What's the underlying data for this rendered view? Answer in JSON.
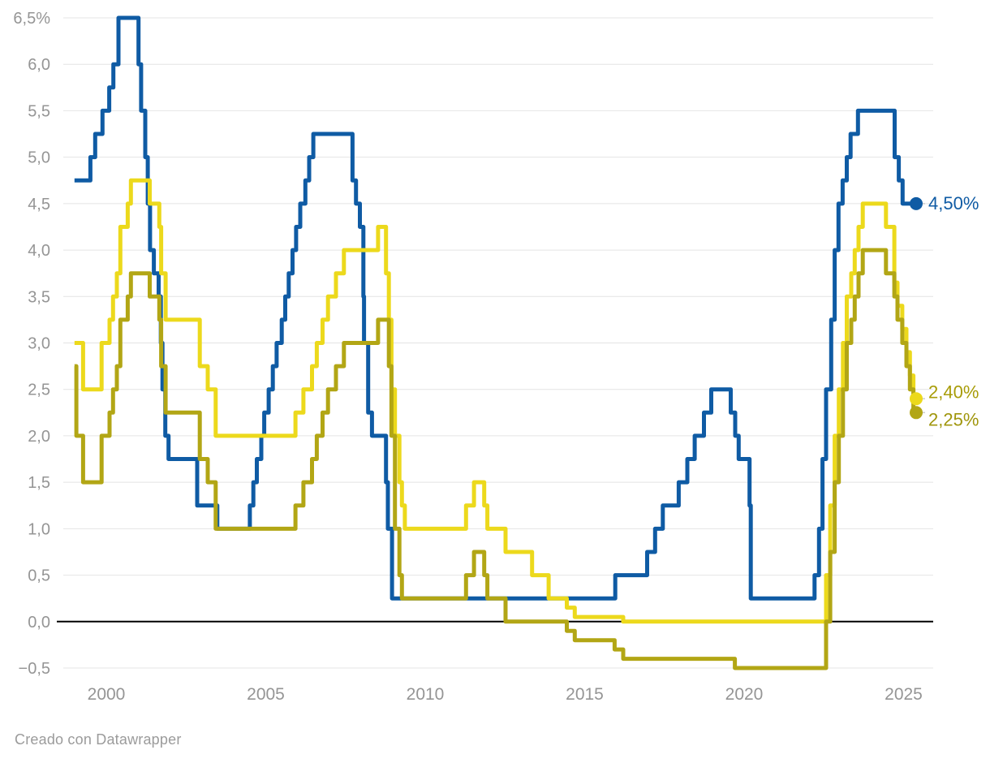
{
  "footer": {
    "credit": "Creado con Datawrapper"
  },
  "colors": {
    "grid": "#e4e4e4",
    "zero_line": "#000000",
    "axis_text": "#959595",
    "background": "#ffffff"
  },
  "chart_data": {
    "type": "line",
    "step": true,
    "title": "",
    "xlabel": "",
    "ylabel": "",
    "xlim": [
      1998.65,
      2025.93
    ],
    "ylim": [
      -0.5,
      6.5
    ],
    "x_end": 2025.38,
    "grid": true,
    "y_ticks": [
      {
        "v": 6.5,
        "label": "6,5%"
      },
      {
        "v": 6.0,
        "label": "6,0"
      },
      {
        "v": 5.5,
        "label": "5,5"
      },
      {
        "v": 5.0,
        "label": "5,0"
      },
      {
        "v": 4.5,
        "label": "4,5"
      },
      {
        "v": 4.0,
        "label": "4,0"
      },
      {
        "v": 3.5,
        "label": "3,5"
      },
      {
        "v": 3.0,
        "label": "3,0"
      },
      {
        "v": 2.5,
        "label": "2,5"
      },
      {
        "v": 2.0,
        "label": "2,0"
      },
      {
        "v": 1.5,
        "label": "1,5"
      },
      {
        "v": 1.0,
        "label": "1,0"
      },
      {
        "v": 0.5,
        "label": "0,5"
      },
      {
        "v": 0.0,
        "label": "0,0"
      },
      {
        "v": -0.5,
        "label": "−0,5"
      }
    ],
    "x_ticks": [
      {
        "v": 2000,
        "label": "2000"
      },
      {
        "v": 2005,
        "label": "2005"
      },
      {
        "v": 2010,
        "label": "2010"
      },
      {
        "v": 2015,
        "label": "2015"
      },
      {
        "v": 2020,
        "label": "2020"
      },
      {
        "v": 2025,
        "label": "2025"
      }
    ],
    "series": [
      {
        "end_label": "4,50%",
        "end_value": 4.5,
        "color": "#0f5ba4",
        "label_color": "#0f5ba4",
        "points": [
          [
            1999.0,
            4.75
          ],
          [
            1999.5,
            5.0
          ],
          [
            1999.65,
            5.25
          ],
          [
            1999.88,
            5.5
          ],
          [
            2000.09,
            5.75
          ],
          [
            2000.22,
            6.0
          ],
          [
            2000.38,
            6.5
          ],
          [
            2001.01,
            6.0
          ],
          [
            2001.09,
            5.5
          ],
          [
            2001.22,
            5.0
          ],
          [
            2001.3,
            4.5
          ],
          [
            2001.37,
            4.0
          ],
          [
            2001.49,
            3.75
          ],
          [
            2001.64,
            3.5
          ],
          [
            2001.71,
            3.0
          ],
          [
            2001.76,
            2.5
          ],
          [
            2001.85,
            2.0
          ],
          [
            2001.95,
            1.75
          ],
          [
            2002.85,
            1.25
          ],
          [
            2003.48,
            1.0
          ],
          [
            2004.5,
            1.25
          ],
          [
            2004.61,
            1.5
          ],
          [
            2004.72,
            1.75
          ],
          [
            2004.86,
            2.0
          ],
          [
            2004.95,
            2.25
          ],
          [
            2005.09,
            2.5
          ],
          [
            2005.22,
            2.75
          ],
          [
            2005.34,
            3.0
          ],
          [
            2005.5,
            3.25
          ],
          [
            2005.61,
            3.5
          ],
          [
            2005.72,
            3.75
          ],
          [
            2005.84,
            4.0
          ],
          [
            2005.95,
            4.25
          ],
          [
            2006.08,
            4.5
          ],
          [
            2006.24,
            4.75
          ],
          [
            2006.36,
            5.0
          ],
          [
            2006.49,
            5.25
          ],
          [
            2007.72,
            4.75
          ],
          [
            2007.83,
            4.5
          ],
          [
            2007.95,
            4.25
          ],
          [
            2008.06,
            3.5
          ],
          [
            2008.08,
            3.0
          ],
          [
            2008.21,
            2.25
          ],
          [
            2008.33,
            2.0
          ],
          [
            2008.77,
            1.5
          ],
          [
            2008.83,
            1.0
          ],
          [
            2008.96,
            0.25
          ],
          [
            2015.96,
            0.5
          ],
          [
            2016.96,
            0.75
          ],
          [
            2017.21,
            1.0
          ],
          [
            2017.45,
            1.25
          ],
          [
            2017.95,
            1.5
          ],
          [
            2018.22,
            1.75
          ],
          [
            2018.45,
            2.0
          ],
          [
            2018.74,
            2.25
          ],
          [
            2018.97,
            2.5
          ],
          [
            2019.58,
            2.25
          ],
          [
            2019.72,
            2.0
          ],
          [
            2019.83,
            1.75
          ],
          [
            2020.17,
            1.25
          ],
          [
            2020.21,
            0.25
          ],
          [
            2022.21,
            0.5
          ],
          [
            2022.35,
            1.0
          ],
          [
            2022.46,
            1.75
          ],
          [
            2022.57,
            2.5
          ],
          [
            2022.73,
            3.25
          ],
          [
            2022.84,
            4.0
          ],
          [
            2022.96,
            4.5
          ],
          [
            2023.09,
            4.75
          ],
          [
            2023.22,
            5.0
          ],
          [
            2023.34,
            5.25
          ],
          [
            2023.57,
            5.5
          ],
          [
            2024.72,
            5.0
          ],
          [
            2024.85,
            4.75
          ],
          [
            2024.97,
            4.5
          ]
        ]
      },
      {
        "end_label": "2,40%",
        "end_value": 2.4,
        "color": "#ecd91c",
        "label_color": "#a89c08",
        "points": [
          [
            1999.0,
            3.0
          ],
          [
            1999.27,
            2.5
          ],
          [
            1999.85,
            3.0
          ],
          [
            2000.1,
            3.25
          ],
          [
            2000.21,
            3.5
          ],
          [
            2000.33,
            3.75
          ],
          [
            2000.44,
            4.25
          ],
          [
            2000.67,
            4.5
          ],
          [
            2000.77,
            4.75
          ],
          [
            2001.36,
            4.5
          ],
          [
            2001.66,
            4.25
          ],
          [
            2001.72,
            3.75
          ],
          [
            2001.86,
            3.25
          ],
          [
            2002.93,
            2.75
          ],
          [
            2003.18,
            2.5
          ],
          [
            2003.43,
            2.0
          ],
          [
            2005.93,
            2.25
          ],
          [
            2006.18,
            2.5
          ],
          [
            2006.45,
            2.75
          ],
          [
            2006.6,
            3.0
          ],
          [
            2006.78,
            3.25
          ],
          [
            2006.95,
            3.5
          ],
          [
            2007.2,
            3.75
          ],
          [
            2007.45,
            4.0
          ],
          [
            2008.52,
            4.25
          ],
          [
            2008.77,
            3.75
          ],
          [
            2008.86,
            3.25
          ],
          [
            2008.94,
            2.5
          ],
          [
            2009.05,
            2.0
          ],
          [
            2009.19,
            1.5
          ],
          [
            2009.27,
            1.25
          ],
          [
            2009.36,
            1.0
          ],
          [
            2011.28,
            1.25
          ],
          [
            2011.53,
            1.5
          ],
          [
            2011.85,
            1.25
          ],
          [
            2011.95,
            1.0
          ],
          [
            2012.52,
            0.75
          ],
          [
            2013.35,
            0.5
          ],
          [
            2013.87,
            0.25
          ],
          [
            2014.44,
            0.15
          ],
          [
            2014.69,
            0.05
          ],
          [
            2016.21,
            0.0
          ],
          [
            2022.57,
            0.5
          ],
          [
            2022.7,
            1.25
          ],
          [
            2022.84,
            2.0
          ],
          [
            2022.97,
            2.5
          ],
          [
            2023.1,
            3.0
          ],
          [
            2023.22,
            3.5
          ],
          [
            2023.36,
            3.75
          ],
          [
            2023.47,
            4.0
          ],
          [
            2023.59,
            4.25
          ],
          [
            2023.72,
            4.5
          ],
          [
            2024.45,
            4.25
          ],
          [
            2024.71,
            3.65
          ],
          [
            2024.81,
            3.4
          ],
          [
            2024.96,
            3.15
          ],
          [
            2025.09,
            2.9
          ],
          [
            2025.2,
            2.65
          ],
          [
            2025.31,
            2.4
          ]
        ]
      },
      {
        "end_label": "2,25%",
        "end_value": 2.25,
        "color": "#b2a615",
        "label_color": "#a0960d",
        "points": [
          [
            1999.0,
            2.75
          ],
          [
            1999.06,
            2.0
          ],
          [
            1999.27,
            1.5
          ],
          [
            1999.85,
            2.0
          ],
          [
            2000.1,
            2.25
          ],
          [
            2000.21,
            2.5
          ],
          [
            2000.33,
            2.75
          ],
          [
            2000.44,
            3.25
          ],
          [
            2000.67,
            3.5
          ],
          [
            2000.77,
            3.75
          ],
          [
            2001.36,
            3.5
          ],
          [
            2001.66,
            3.25
          ],
          [
            2001.72,
            2.75
          ],
          [
            2001.86,
            2.25
          ],
          [
            2002.93,
            1.75
          ],
          [
            2003.18,
            1.5
          ],
          [
            2003.43,
            1.0
          ],
          [
            2005.93,
            1.25
          ],
          [
            2006.18,
            1.5
          ],
          [
            2006.45,
            1.75
          ],
          [
            2006.6,
            2.0
          ],
          [
            2006.78,
            2.25
          ],
          [
            2006.95,
            2.5
          ],
          [
            2007.2,
            2.75
          ],
          [
            2007.45,
            3.0
          ],
          [
            2008.52,
            3.25
          ],
          [
            2008.86,
            2.75
          ],
          [
            2008.94,
            2.0
          ],
          [
            2009.05,
            1.0
          ],
          [
            2009.19,
            0.5
          ],
          [
            2009.27,
            0.25
          ],
          [
            2011.28,
            0.5
          ],
          [
            2011.53,
            0.75
          ],
          [
            2011.85,
            0.5
          ],
          [
            2011.95,
            0.25
          ],
          [
            2012.52,
            0.0
          ],
          [
            2014.44,
            -0.1
          ],
          [
            2014.69,
            -0.2
          ],
          [
            2015.94,
            -0.3
          ],
          [
            2016.21,
            -0.4
          ],
          [
            2019.71,
            -0.5
          ],
          [
            2022.57,
            0.0
          ],
          [
            2022.7,
            0.75
          ],
          [
            2022.84,
            1.5
          ],
          [
            2022.97,
            2.0
          ],
          [
            2023.1,
            2.5
          ],
          [
            2023.22,
            3.0
          ],
          [
            2023.36,
            3.25
          ],
          [
            2023.47,
            3.5
          ],
          [
            2023.59,
            3.75
          ],
          [
            2023.72,
            4.0
          ],
          [
            2024.45,
            3.75
          ],
          [
            2024.71,
            3.5
          ],
          [
            2024.81,
            3.25
          ],
          [
            2024.96,
            3.0
          ],
          [
            2025.09,
            2.75
          ],
          [
            2025.2,
            2.5
          ],
          [
            2025.31,
            2.25
          ]
        ]
      }
    ]
  }
}
